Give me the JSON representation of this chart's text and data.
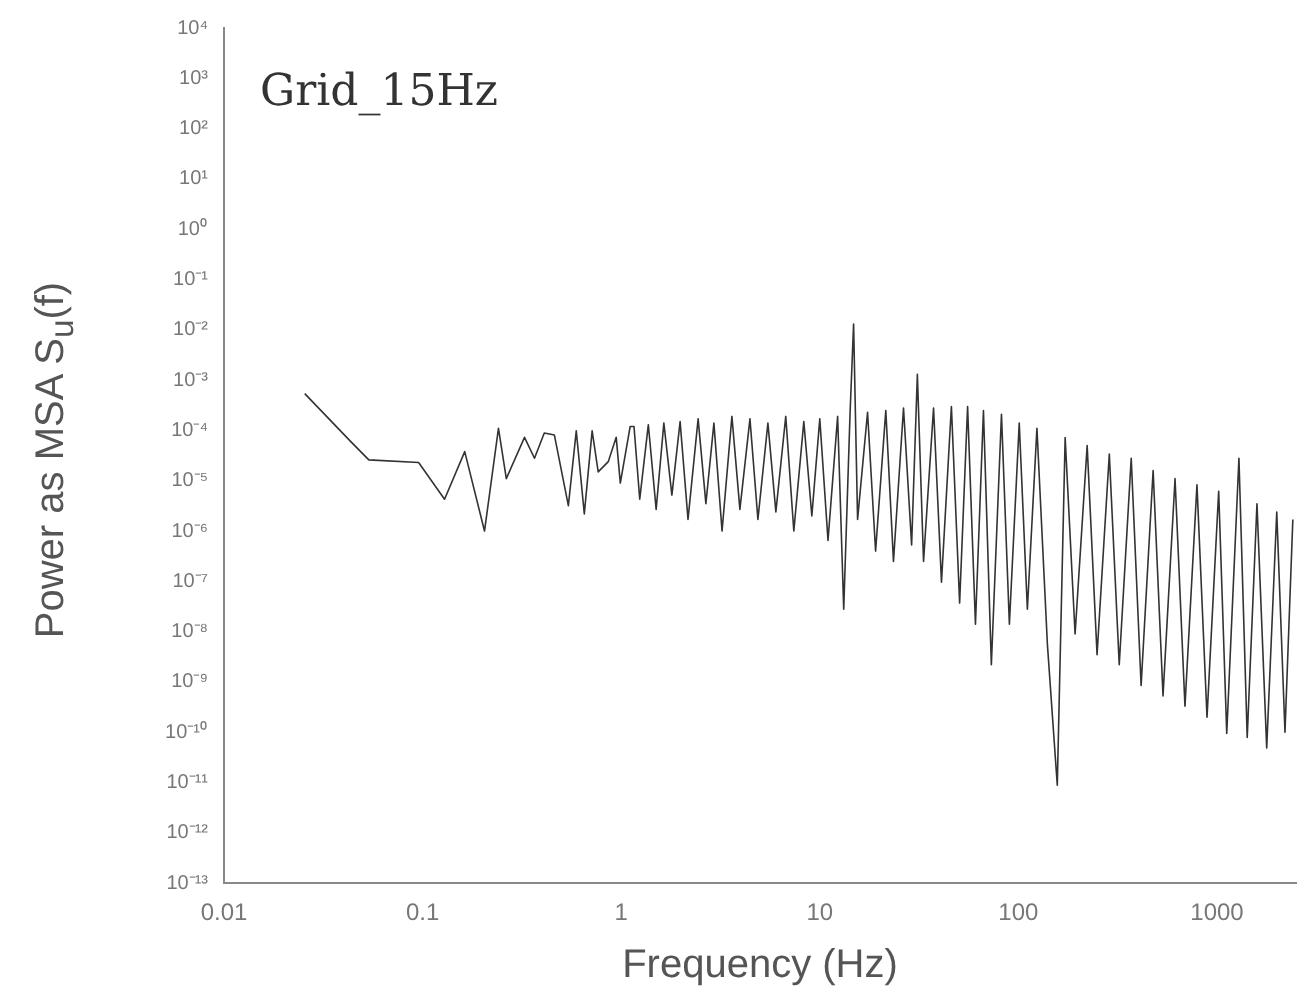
{
  "chart_data": {
    "type": "line",
    "xlabel": "Frequency (Hz)",
    "ylabel": "Power as MSA S$_{u}$(f)",
    "annotations": [
      "Grid_15Hz"
    ],
    "log": "xy",
    "grid": false,
    "legend": false,
    "marker": "none",
    "line_style": "solid",
    "xlim": [
      0.01,
      2500
    ],
    "ylim": [
      1e-13,
      10000.0
    ],
    "xticks": [
      0.01,
      0.1,
      1,
      10,
      100,
      1000
    ],
    "yticks": [
      {
        "value": 10000.0,
        "label": "10⁴"
      },
      {
        "value": 1000.0,
        "label": "10³"
      },
      {
        "value": 100.0,
        "label": "10²"
      },
      {
        "value": 10.0,
        "label": "10¹"
      },
      {
        "value": 1,
        "label": "10⁰"
      },
      {
        "value": 0.1,
        "label": "10⁻¹"
      },
      {
        "value": 0.01,
        "label": "10⁻²"
      },
      {
        "value": 0.001,
        "label": "10⁻³"
      },
      {
        "value": 0.0001,
        "label": "10⁻⁴"
      },
      {
        "value": 1e-05,
        "label": "10⁻⁵"
      },
      {
        "value": 1e-06,
        "label": "10⁻⁶"
      },
      {
        "value": 1e-07,
        "label": "10⁻⁷"
      },
      {
        "value": 1e-08,
        "label": "10⁻⁸"
      },
      {
        "value": 1e-09,
        "label": "10⁻⁹"
      },
      {
        "value": 1e-10,
        "label": "10⁻¹⁰"
      },
      {
        "value": 1e-11,
        "label": "10⁻¹¹"
      },
      {
        "value": 1e-12,
        "label": "10⁻¹²"
      },
      {
        "value": 1e-13,
        "label": "10⁻¹³"
      }
    ],
    "x": [
      0.0255,
      0.0435,
      0.0536,
      0.0955,
      0.129,
      0.163,
      0.205,
      0.241,
      0.264,
      0.326,
      0.366,
      0.41,
      0.461,
      0.542,
      0.594,
      0.652,
      0.714,
      0.766,
      0.861,
      0.944,
      0.99,
      1.11,
      1.16,
      1.24,
      1.37,
      1.5,
      1.64,
      1.8,
      1.98,
      2.17,
      2.44,
      2.67,
      2.93,
      3.22,
      3.61,
      3.96,
      4.45,
      4.88,
      5.48,
      6.01,
      6.74,
      7.4,
      8.31,
      9.12,
      10,
      11,
      12.3,
      13.2,
      14.2,
      14.8,
      15.5,
      17.4,
      19.1,
      21.5,
      23.5,
      26.4,
      29,
      31,
      33.3,
      37.4,
      41,
      46,
      50.6,
      55.5,
      60.8,
      66.7,
      73.1,
      82.2,
      90.1,
      101,
      111,
      124,
      140,
      157,
      172,
      193,
      222,
      249,
      287,
      322,
      370,
      415,
      477,
      535,
      615,
      690,
      793,
      891,
      1020,
      1120,
      1290,
      1420,
      1590,
      1780,
      2000,
      2200,
      2410
    ],
    "series": [
      {
        "color": "#333333",
        "values": [
          0.00054,
          6e-05,
          2.6e-05,
          2.3e-05,
          4.3e-06,
          3.8e-05,
          1e-06,
          0.00011,
          1.1e-05,
          7.3e-05,
          2.8e-05,
          8.9e-05,
          8.1e-05,
          3.2e-06,
          9.8e-05,
          2.2e-06,
          9.8e-05,
          1.5e-05,
          2.4e-05,
          7.3e-05,
          9e-06,
          0.00012,
          0.00012,
          4.3e-06,
          0.00013,
          2.7e-06,
          0.00014,
          5.2e-06,
          0.00015,
          1.7e-06,
          0.00017,
          3.5e-06,
          0.00014,
          1e-06,
          0.00019,
          2.7e-06,
          0.00017,
          1.7e-06,
          0.00014,
          2.4e-06,
          0.00019,
          1e-06,
          0.00015,
          2e-06,
          0.00017,
          6.5e-07,
          0.00019,
          2.8e-08,
          0.00021,
          0.013,
          1.7e-06,
          0.00023,
          4e-07,
          0.00025,
          2.5e-07,
          0.00028,
          5.3e-07,
          0.0013,
          2.5e-07,
          0.00028,
          9.6e-08,
          0.0003,
          3.7e-08,
          0.0003,
          1.4e-08,
          0.00025,
          2.2e-09,
          0.00021,
          1.4e-08,
          0.00014,
          2.8e-08,
          0.00011,
          5.6e-09,
          8.9e-12,
          7.2e-05,
          9e-09,
          5e-05,
          3.5e-09,
          3.4e-05,
          2.2e-09,
          2.8e-05,
          8.5e-10,
          1.6e-05,
          5.3e-10,
          1.1e-05,
          3.3e-10,
          8.3e-06,
          2e-10,
          6.2e-06,
          9.5e-11,
          2.8e-05,
          7.9e-11,
          3.5e-06,
          4.9e-11,
          2.4e-06,
          1e-10,
          1.7e-06
        ]
      }
    ]
  }
}
